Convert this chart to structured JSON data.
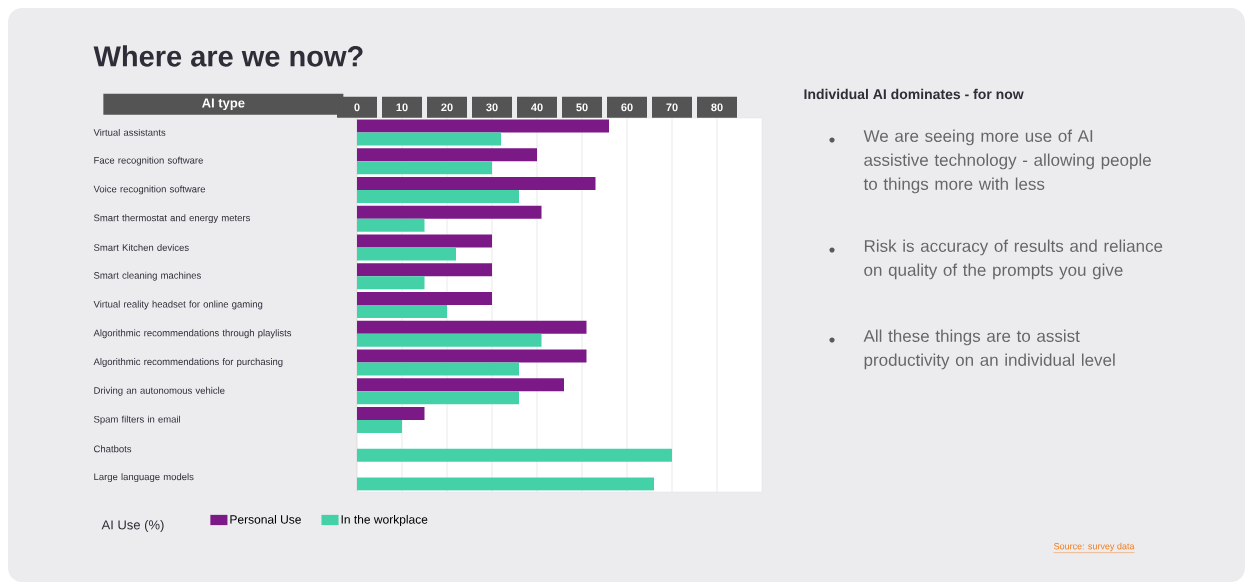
{
  "chart_data": {
    "type": "bar",
    "orientation": "horizontal",
    "title": "Where are we now?",
    "ylabel": "AI type",
    "legend_title": "AI Use (%)",
    "categories": [
      "Virtual assistants",
      "Face recognition software",
      "Voice recognition software",
      "Smart thermostat and energy meters",
      "Smart Kitchen devices",
      "Smart cleaning machines",
      "Virtual reality headset for online gaming",
      "Algorithmic recommendations through playlists",
      "Algorithmic recommendations for purchasing",
      "Driving an autonomous vehicle",
      "Spam filters in email",
      "Chatbots",
      "Large language models"
    ],
    "series": [
      {
        "name": "Personal Use",
        "color": "#7b1a86",
        "values": [
          56,
          40,
          53,
          41,
          30,
          30,
          30,
          51,
          51,
          46,
          15,
          null,
          null
        ]
      },
      {
        "name": "In the workplace",
        "color": "#44d1a8",
        "values": [
          32,
          30,
          36,
          15,
          22,
          15,
          20,
          41,
          36,
          36,
          10,
          70,
          66
        ]
      }
    ],
    "xlim": [
      0,
      90
    ],
    "xticks": [
      0,
      10,
      20,
      30,
      40,
      50,
      60,
      70,
      80
    ],
    "grid": "x",
    "legend": "bottom",
    "annotations": [
      "Individual AI dominates - for now",
      "We are seeing more use of AI assistive technology - allowing people to things more with less",
      "Risk is accuracy of results and reliance on quality of the prompts you give",
      "All these things are to assist productivity on an individual level",
      "Source: survey data"
    ]
  }
}
